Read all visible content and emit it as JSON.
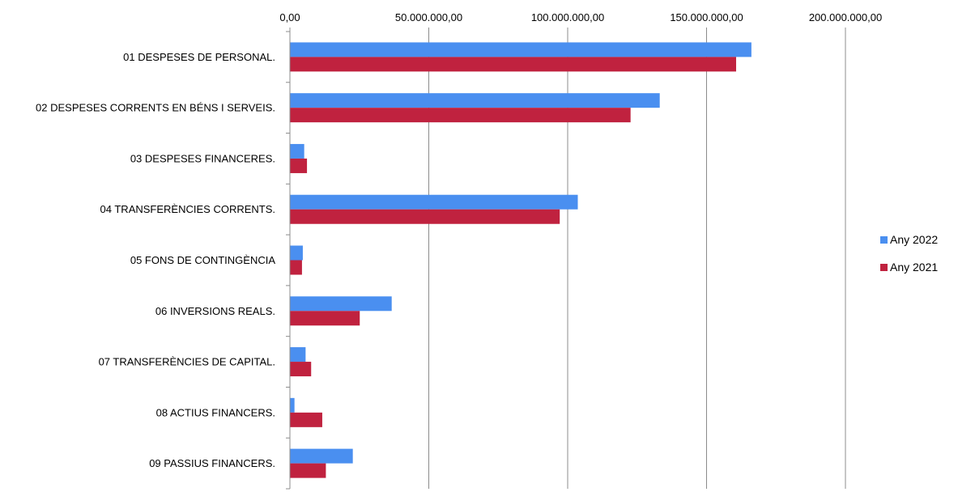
{
  "chart_data": {
    "type": "bar",
    "orientation": "horizontal",
    "x_axis_position": "top",
    "title": "",
    "xlabel": "",
    "ylabel": "",
    "xlim": [
      0,
      200000000
    ],
    "x_ticks": [
      0,
      50000000,
      100000000,
      150000000,
      200000000
    ],
    "x_tick_labels": [
      "0,00",
      "50.000.000,00",
      "100.000.000,00",
      "150.000.000,00",
      "200.000.000,00"
    ],
    "grid": true,
    "legend_position": "right",
    "categories": [
      "01 DESPESES DE PERSONAL.",
      "02 DESPESES CORRENTS EN BÉNS I SERVEIS.",
      "03 DESPESES FINANCERES.",
      "04 TRANSFERÈNCIES CORRENTS.",
      "05 FONS DE CONTINGÈNCIA",
      "06 INVERSIONS REALS.",
      "07 TRANSFERÈNCIES DE CAPITAL.",
      "08 ACTIUS FINANCERS.",
      "09 PASSIUS FINANCERS."
    ],
    "series": [
      {
        "name": "Any 2022",
        "color": "#4a8ff0",
        "values": [
          166000000,
          133000000,
          5000000,
          103500000,
          4500000,
          36500000,
          5500000,
          1500000,
          22500000
        ]
      },
      {
        "name": "Any 2021",
        "color": "#c0223f",
        "values": [
          160500000,
          122500000,
          6000000,
          97000000,
          4200000,
          25000000,
          7500000,
          11500000,
          12800000
        ]
      }
    ]
  }
}
